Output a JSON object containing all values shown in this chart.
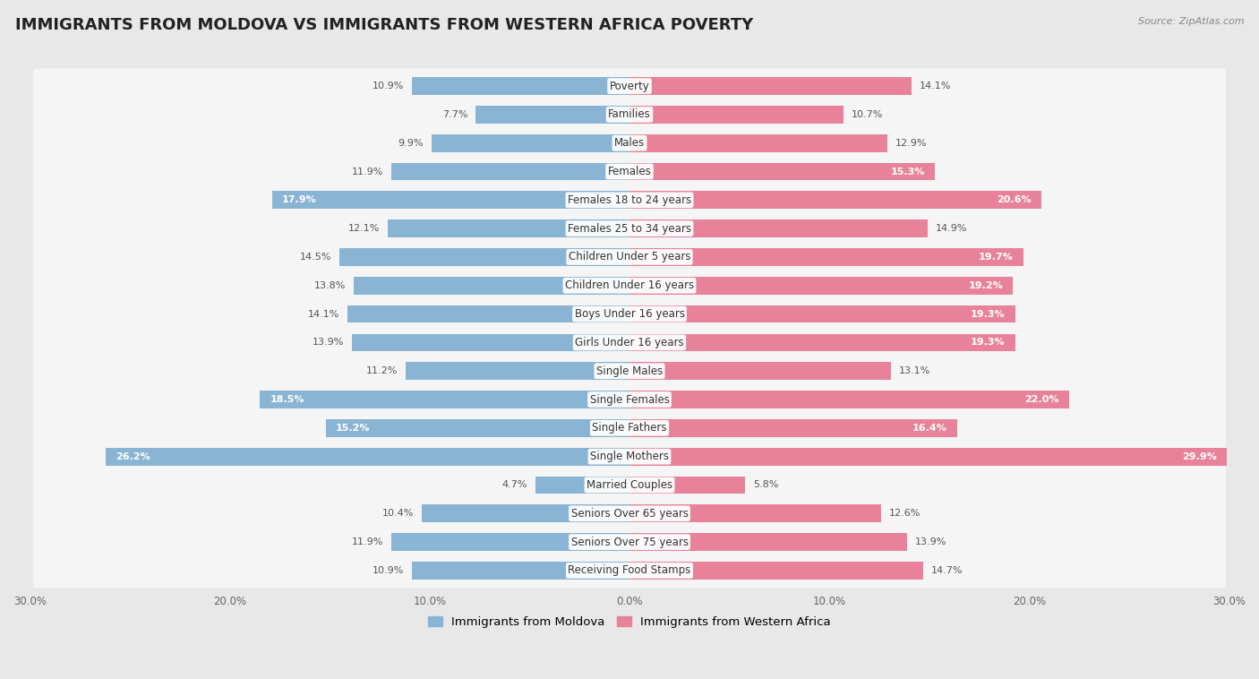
{
  "title": "IMMIGRANTS FROM MOLDOVA VS IMMIGRANTS FROM WESTERN AFRICA POVERTY",
  "source": "Source: ZipAtlas.com",
  "categories": [
    "Poverty",
    "Families",
    "Males",
    "Females",
    "Females 18 to 24 years",
    "Females 25 to 34 years",
    "Children Under 5 years",
    "Children Under 16 years",
    "Boys Under 16 years",
    "Girls Under 16 years",
    "Single Males",
    "Single Females",
    "Single Fathers",
    "Single Mothers",
    "Married Couples",
    "Seniors Over 65 years",
    "Seniors Over 75 years",
    "Receiving Food Stamps"
  ],
  "moldova_values": [
    10.9,
    7.7,
    9.9,
    11.9,
    17.9,
    12.1,
    14.5,
    13.8,
    14.1,
    13.9,
    11.2,
    18.5,
    15.2,
    26.2,
    4.7,
    10.4,
    11.9,
    10.9
  ],
  "western_africa_values": [
    14.1,
    10.7,
    12.9,
    15.3,
    20.6,
    14.9,
    19.7,
    19.2,
    19.3,
    19.3,
    13.1,
    22.0,
    16.4,
    29.9,
    5.8,
    12.6,
    13.9,
    14.7
  ],
  "moldova_color": "#8ab4d4",
  "western_africa_color": "#e8829a",
  "moldova_label": "Immigrants from Moldova",
  "western_africa_label": "Immigrants from Western Africa",
  "xlim": 30.0,
  "background_color": "#e8e8e8",
  "row_color": "#f5f5f5",
  "title_fontsize": 13,
  "source_fontsize": 8,
  "value_fontsize": 8,
  "cat_fontsize": 8.5,
  "threshold_white_label": 15.0
}
